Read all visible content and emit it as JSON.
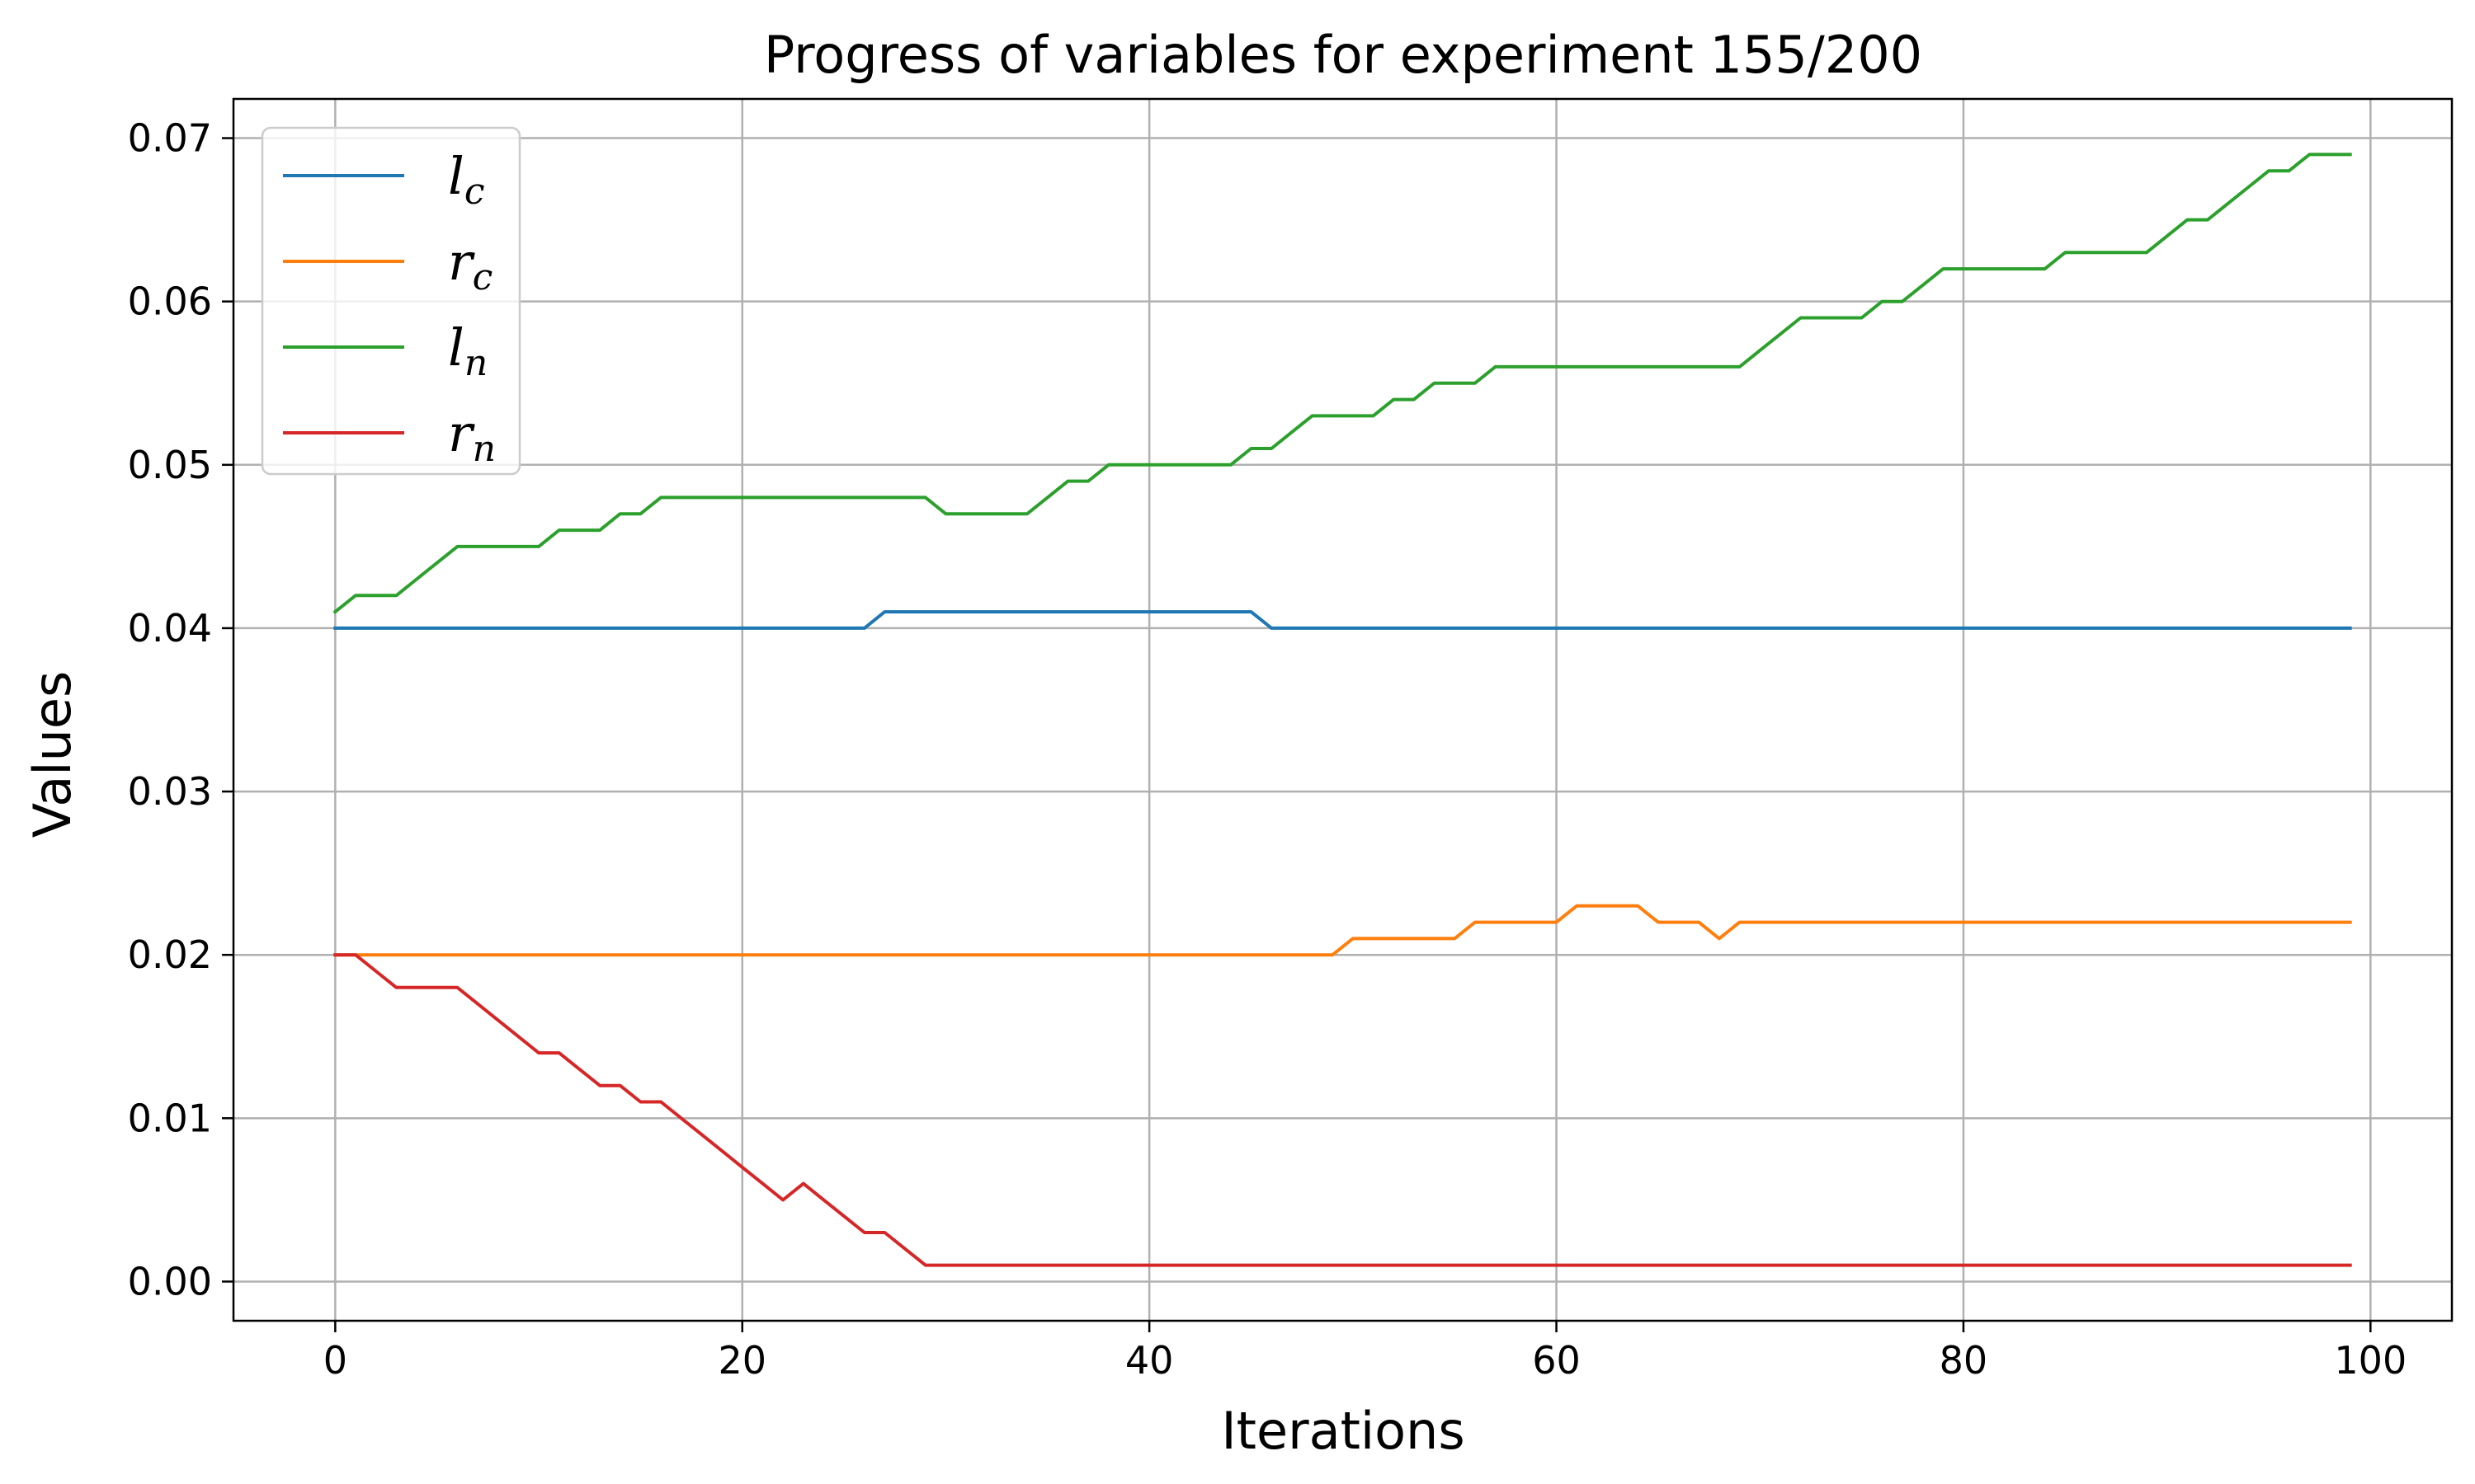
{
  "chart_data": {
    "type": "line",
    "title": "Progress of variables for experiment 155/200",
    "xlabel": "Iterations",
    "ylabel": "Values",
    "xlim": [
      -5,
      104
    ],
    "ylim": [
      -0.0024,
      0.0724
    ],
    "xticks": [
      0,
      20,
      40,
      60,
      80,
      100
    ],
    "xtick_labels": [
      "0",
      "20",
      "40",
      "60",
      "80",
      "100"
    ],
    "yticks": [
      0.0,
      0.01,
      0.02,
      0.03,
      0.04,
      0.05,
      0.06,
      0.07
    ],
    "ytick_labels": [
      "0.00",
      "0.01",
      "0.02",
      "0.03",
      "0.04",
      "0.05",
      "0.06",
      "0.07"
    ],
    "grid": true,
    "legend_position": "upper-left",
    "x": [
      0,
      1,
      2,
      3,
      4,
      5,
      6,
      7,
      8,
      9,
      10,
      11,
      12,
      13,
      14,
      15,
      16,
      17,
      18,
      19,
      20,
      21,
      22,
      23,
      24,
      25,
      26,
      27,
      28,
      29,
      30,
      31,
      32,
      33,
      34,
      35,
      36,
      37,
      38,
      39,
      40,
      41,
      42,
      43,
      44,
      45,
      46,
      47,
      48,
      49,
      50,
      51,
      52,
      53,
      54,
      55,
      56,
      57,
      58,
      59,
      60,
      61,
      62,
      63,
      64,
      65,
      66,
      67,
      68,
      69,
      70,
      71,
      72,
      73,
      74,
      75,
      76,
      77,
      78,
      79,
      80,
      81,
      82,
      83,
      84,
      85,
      86,
      87,
      88,
      89,
      90,
      91,
      92,
      93,
      94,
      95,
      96,
      97,
      98,
      99
    ],
    "series": [
      {
        "name": "l",
        "subscript": "c",
        "color": "#1f77b4",
        "values": [
          0.04,
          0.04,
          0.04,
          0.04,
          0.04,
          0.04,
          0.04,
          0.04,
          0.04,
          0.04,
          0.04,
          0.04,
          0.04,
          0.04,
          0.04,
          0.04,
          0.04,
          0.04,
          0.04,
          0.04,
          0.04,
          0.04,
          0.04,
          0.04,
          0.04,
          0.04,
          0.04,
          0.041,
          0.041,
          0.041,
          0.041,
          0.041,
          0.041,
          0.041,
          0.041,
          0.041,
          0.041,
          0.041,
          0.041,
          0.041,
          0.041,
          0.041,
          0.041,
          0.041,
          0.041,
          0.041,
          0.04,
          0.04,
          0.04,
          0.04,
          0.04,
          0.04,
          0.04,
          0.04,
          0.04,
          0.04,
          0.04,
          0.04,
          0.04,
          0.04,
          0.04,
          0.04,
          0.04,
          0.04,
          0.04,
          0.04,
          0.04,
          0.04,
          0.04,
          0.04,
          0.04,
          0.04,
          0.04,
          0.04,
          0.04,
          0.04,
          0.04,
          0.04,
          0.04,
          0.04,
          0.04,
          0.04,
          0.04,
          0.04,
          0.04,
          0.04,
          0.04,
          0.04,
          0.04,
          0.04,
          0.04,
          0.04,
          0.04,
          0.04,
          0.04,
          0.04,
          0.04,
          0.04,
          0.04,
          0.04
        ]
      },
      {
        "name": "r",
        "subscript": "c",
        "color": "#ff7f0e",
        "values": [
          0.02,
          0.02,
          0.02,
          0.02,
          0.02,
          0.02,
          0.02,
          0.02,
          0.02,
          0.02,
          0.02,
          0.02,
          0.02,
          0.02,
          0.02,
          0.02,
          0.02,
          0.02,
          0.02,
          0.02,
          0.02,
          0.02,
          0.02,
          0.02,
          0.02,
          0.02,
          0.02,
          0.02,
          0.02,
          0.02,
          0.02,
          0.02,
          0.02,
          0.02,
          0.02,
          0.02,
          0.02,
          0.02,
          0.02,
          0.02,
          0.02,
          0.02,
          0.02,
          0.02,
          0.02,
          0.02,
          0.02,
          0.02,
          0.02,
          0.02,
          0.021,
          0.021,
          0.021,
          0.021,
          0.021,
          0.021,
          0.022,
          0.022,
          0.022,
          0.022,
          0.022,
          0.023,
          0.023,
          0.023,
          0.023,
          0.022,
          0.022,
          0.022,
          0.021,
          0.022,
          0.022,
          0.022,
          0.022,
          0.022,
          0.022,
          0.022,
          0.022,
          0.022,
          0.022,
          0.022,
          0.022,
          0.022,
          0.022,
          0.022,
          0.022,
          0.022,
          0.022,
          0.022,
          0.022,
          0.022,
          0.022,
          0.022,
          0.022,
          0.022,
          0.022,
          0.022,
          0.022,
          0.022,
          0.022,
          0.022
        ]
      },
      {
        "name": "l",
        "subscript": "n",
        "color": "#2ca02c",
        "values": [
          0.041,
          0.042,
          0.042,
          0.042,
          0.043,
          0.044,
          0.045,
          0.045,
          0.045,
          0.045,
          0.045,
          0.046,
          0.046,
          0.046,
          0.047,
          0.047,
          0.048,
          0.048,
          0.048,
          0.048,
          0.048,
          0.048,
          0.048,
          0.048,
          0.048,
          0.048,
          0.048,
          0.048,
          0.048,
          0.048,
          0.047,
          0.047,
          0.047,
          0.047,
          0.047,
          0.048,
          0.049,
          0.049,
          0.05,
          0.05,
          0.05,
          0.05,
          0.05,
          0.05,
          0.05,
          0.051,
          0.051,
          0.052,
          0.053,
          0.053,
          0.053,
          0.053,
          0.054,
          0.054,
          0.055,
          0.055,
          0.055,
          0.056,
          0.056,
          0.056,
          0.056,
          0.056,
          0.056,
          0.056,
          0.056,
          0.056,
          0.056,
          0.056,
          0.056,
          0.056,
          0.057,
          0.058,
          0.059,
          0.059,
          0.059,
          0.059,
          0.06,
          0.06,
          0.061,
          0.062,
          0.062,
          0.062,
          0.062,
          0.062,
          0.062,
          0.063,
          0.063,
          0.063,
          0.063,
          0.063,
          0.064,
          0.065,
          0.065,
          0.066,
          0.067,
          0.068,
          0.068,
          0.069,
          0.069,
          0.069
        ]
      },
      {
        "name": "r",
        "subscript": "n",
        "color": "#d62728",
        "values": [
          0.02,
          0.02,
          0.019,
          0.018,
          0.018,
          0.018,
          0.018,
          0.017,
          0.016,
          0.015,
          0.014,
          0.014,
          0.013,
          0.012,
          0.012,
          0.011,
          0.011,
          0.01,
          0.009,
          0.008,
          0.007,
          0.006,
          0.005,
          0.006,
          0.005,
          0.004,
          0.003,
          0.003,
          0.002,
          0.001,
          0.001,
          0.001,
          0.001,
          0.001,
          0.001,
          0.001,
          0.001,
          0.001,
          0.001,
          0.001,
          0.001,
          0.001,
          0.001,
          0.001,
          0.001,
          0.001,
          0.001,
          0.001,
          0.001,
          0.001,
          0.001,
          0.001,
          0.001,
          0.001,
          0.001,
          0.001,
          0.001,
          0.001,
          0.001,
          0.001,
          0.001,
          0.001,
          0.001,
          0.001,
          0.001,
          0.001,
          0.001,
          0.001,
          0.001,
          0.001,
          0.001,
          0.001,
          0.001,
          0.001,
          0.001,
          0.001,
          0.001,
          0.001,
          0.001,
          0.001,
          0.001,
          0.001,
          0.001,
          0.001,
          0.001,
          0.001,
          0.001,
          0.001,
          0.001,
          0.001,
          0.001,
          0.001,
          0.001,
          0.001,
          0.001,
          0.001,
          0.001,
          0.001,
          0.001,
          0.001
        ]
      }
    ]
  }
}
